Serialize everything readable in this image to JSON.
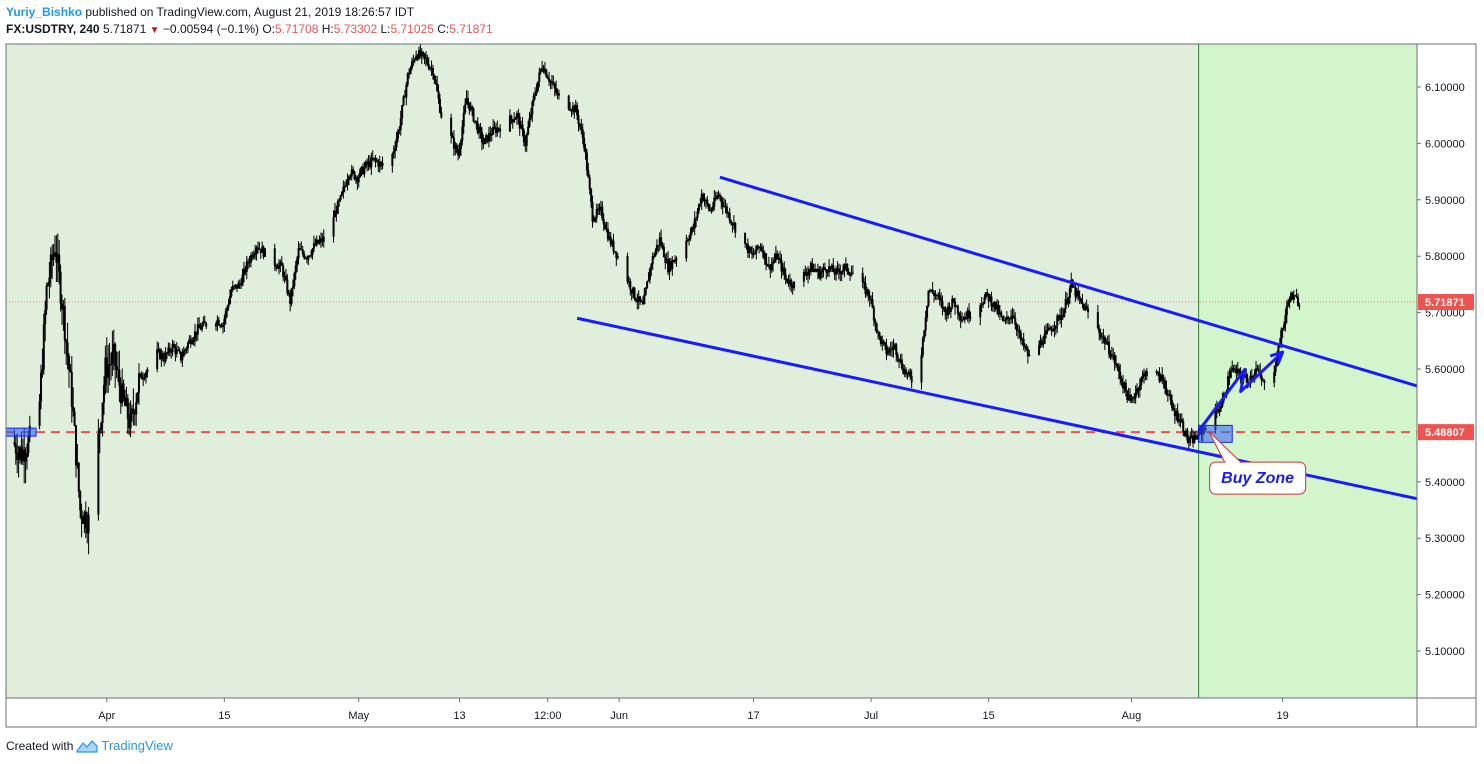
{
  "header": {
    "author": "Yuriy_Bishko",
    "published_text": "published on TradingView.com, August 21, 2019 18:26:57 IDT",
    "symbol": "FX:USDTRY, 240",
    "last": "5.71871",
    "change": "−0.00594 (−0.1%)",
    "o_label": "O:",
    "o_value": "5.71708",
    "h_label": "H:",
    "h_value": "5.73302",
    "l_label": "L:",
    "l_value": "5.71025",
    "c_label": "C:",
    "c_value": "5.71871"
  },
  "footer": {
    "created_with": "Created with",
    "brand": "TradingView"
  },
  "colors": {
    "bg_past": "#dfefdc",
    "bg_future": "#d3f5cc",
    "channel": "#1a1aff",
    "support": "#ef5350",
    "price_badge": "#ef5350",
    "candle": "#000000",
    "callout_border": "#d32f2f",
    "callout_text": "#1a1aff"
  },
  "chart_data": {
    "type": "candlestick",
    "symbol": "FX:USDTRY",
    "interval": "240",
    "x_tick_labels": [
      "Apr",
      "15",
      "May",
      "13",
      "12:00",
      "Jun",
      "17",
      "Jul",
      "15",
      "Aug",
      "19"
    ],
    "y_tick_labels": [
      "6.10000",
      "6.00000",
      "5.90000",
      "5.80000",
      "5.70000",
      "5.60000",
      "5.40000",
      "5.30000",
      "5.20000",
      "5.10000"
    ],
    "y_ticks": [
      6.1,
      6.0,
      5.9,
      5.8,
      5.7,
      5.6,
      5.4,
      5.3,
      5.2,
      5.1
    ],
    "ylim": [
      5.02,
      6.17
    ],
    "current_price": 5.71871,
    "current_price_label": "5.71871",
    "support_level": 5.48807,
    "support_label": "5.48807",
    "price_path": [
      [
        "2019-03-21",
        5.47
      ],
      [
        "2019-03-22",
        5.45
      ],
      [
        "2019-03-24",
        5.5
      ],
      [
        "2019-03-25",
        5.74
      ],
      [
        "2019-03-26",
        5.82
      ],
      [
        "2019-03-27",
        5.7
      ],
      [
        "2019-03-28",
        5.55
      ],
      [
        "2019-03-29",
        5.35
      ],
      [
        "2019-03-30",
        5.33
      ],
      [
        "2019-03-31",
        5.45
      ],
      [
        "2019-04-01",
        5.6
      ],
      [
        "2019-04-02",
        5.62
      ],
      [
        "2019-04-03",
        5.55
      ],
      [
        "2019-04-04",
        5.5
      ],
      [
        "2019-04-05",
        5.58
      ],
      [
        "2019-04-06",
        5.6
      ],
      [
        "2019-04-07",
        5.63
      ],
      [
        "2019-04-08",
        5.62
      ],
      [
        "2019-04-09",
        5.64
      ],
      [
        "2019-04-10",
        5.62
      ],
      [
        "2019-04-11",
        5.65
      ],
      [
        "2019-04-12",
        5.67
      ],
      [
        "2019-04-14",
        5.69
      ],
      [
        "2019-04-15",
        5.68
      ],
      [
        "2019-04-16",
        5.74
      ],
      [
        "2019-04-17",
        5.75
      ],
      [
        "2019-04-18",
        5.79
      ],
      [
        "2019-04-19",
        5.82
      ],
      [
        "2019-04-21",
        5.79
      ],
      [
        "2019-04-22",
        5.78
      ],
      [
        "2019-04-23",
        5.72
      ],
      [
        "2019-04-24",
        5.81
      ],
      [
        "2019-04-25",
        5.8
      ],
      [
        "2019-04-26",
        5.82
      ],
      [
        "2019-04-27",
        5.83
      ],
      [
        "2019-04-29",
        5.9
      ],
      [
        "2019-04-30",
        5.95
      ],
      [
        "2019-05-01",
        5.94
      ],
      [
        "2019-05-02",
        5.96
      ],
      [
        "2019-05-03",
        5.97
      ],
      [
        "2019-05-04",
        5.96
      ],
      [
        "2019-05-05",
        5.97
      ],
      [
        "2019-05-06",
        6.03
      ],
      [
        "2019-05-07",
        6.12
      ],
      [
        "2019-05-08",
        6.16
      ],
      [
        "2019-05-09",
        6.15
      ],
      [
        "2019-05-10",
        6.13
      ],
      [
        "2019-05-11",
        6.05
      ],
      [
        "2019-05-13",
        5.98
      ],
      [
        "2019-05-14",
        6.08
      ],
      [
        "2019-05-15",
        6.04
      ],
      [
        "2019-05-16",
        6.0
      ],
      [
        "2019-05-17",
        6.02
      ],
      [
        "2019-05-18",
        6.03
      ],
      [
        "2019-05-20",
        6.05
      ],
      [
        "2019-05-21",
        6.0
      ],
      [
        "2019-05-22",
        6.08
      ],
      [
        "2019-05-23",
        6.14
      ],
      [
        "2019-05-24",
        6.11
      ],
      [
        "2019-05-25",
        6.08
      ],
      [
        "2019-05-27",
        6.06
      ],
      [
        "2019-05-28",
        6.0
      ],
      [
        "2019-05-29",
        5.87
      ],
      [
        "2019-05-30",
        5.88
      ],
      [
        "2019-05-31",
        5.83
      ],
      [
        "2019-06-01",
        5.8
      ],
      [
        "2019-06-03",
        5.73
      ],
      [
        "2019-06-04",
        5.71
      ],
      [
        "2019-06-05",
        5.79
      ],
      [
        "2019-06-06",
        5.83
      ],
      [
        "2019-06-07",
        5.78
      ],
      [
        "2019-06-08",
        5.8
      ],
      [
        "2019-06-10",
        5.85
      ],
      [
        "2019-06-11",
        5.91
      ],
      [
        "2019-06-12",
        5.88
      ],
      [
        "2019-06-13",
        5.91
      ],
      [
        "2019-06-14",
        5.88
      ],
      [
        "2019-06-15",
        5.85
      ],
      [
        "2019-06-17",
        5.8
      ],
      [
        "2019-06-18",
        5.82
      ],
      [
        "2019-06-19",
        5.78
      ],
      [
        "2019-06-20",
        5.8
      ],
      [
        "2019-06-21",
        5.76
      ],
      [
        "2019-06-22",
        5.75
      ],
      [
        "2019-06-24",
        5.78
      ],
      [
        "2019-06-25",
        5.77
      ],
      [
        "2019-06-26",
        5.78
      ],
      [
        "2019-06-27",
        5.77
      ],
      [
        "2019-06-28",
        5.78
      ],
      [
        "2019-06-29",
        5.77
      ],
      [
        "2019-07-01",
        5.73
      ],
      [
        "2019-07-02",
        5.66
      ],
      [
        "2019-07-03",
        5.63
      ],
      [
        "2019-07-04",
        5.64
      ],
      [
        "2019-07-05",
        5.6
      ],
      [
        "2019-07-06",
        5.58
      ],
      [
        "2019-07-07",
        5.61
      ],
      [
        "2019-07-08",
        5.74
      ],
      [
        "2019-07-09",
        5.73
      ],
      [
        "2019-07-10",
        5.7
      ],
      [
        "2019-07-11",
        5.72
      ],
      [
        "2019-07-12",
        5.69
      ],
      [
        "2019-07-13",
        5.7
      ],
      [
        "2019-07-15",
        5.73
      ],
      [
        "2019-07-16",
        5.71
      ],
      [
        "2019-07-17",
        5.68
      ],
      [
        "2019-07-18",
        5.7
      ],
      [
        "2019-07-19",
        5.65
      ],
      [
        "2019-07-20",
        5.62
      ],
      [
        "2019-07-22",
        5.66
      ],
      [
        "2019-07-23",
        5.68
      ],
      [
        "2019-07-24",
        5.7
      ],
      [
        "2019-07-25",
        5.75
      ],
      [
        "2019-07-26",
        5.72
      ],
      [
        "2019-07-27",
        5.7
      ],
      [
        "2019-07-29",
        5.65
      ],
      [
        "2019-07-30",
        5.62
      ],
      [
        "2019-07-31",
        5.58
      ],
      [
        "2019-08-01",
        5.54
      ],
      [
        "2019-08-02",
        5.57
      ],
      [
        "2019-08-03",
        5.6
      ],
      [
        "2019-08-05",
        5.58
      ],
      [
        "2019-08-06",
        5.53
      ],
      [
        "2019-08-07",
        5.51
      ],
      [
        "2019-08-08",
        5.47
      ],
      [
        "2019-08-09",
        5.48
      ],
      [
        "2019-08-10",
        5.5
      ],
      [
        "2019-08-12",
        5.54
      ],
      [
        "2019-08-13",
        5.6
      ],
      [
        "2019-08-14",
        5.59
      ],
      [
        "2019-08-15",
        5.58
      ],
      [
        "2019-08-16",
        5.6
      ],
      [
        "2019-08-17",
        5.57
      ],
      [
        "2019-08-18",
        5.59
      ],
      [
        "2019-08-19",
        5.66
      ],
      [
        "2019-08-20",
        5.73
      ],
      [
        "2019-08-21",
        5.72
      ]
    ],
    "channel_upper": [
      [
        "2019-06-13",
        5.94
      ],
      [
        "2019-09-04",
        5.57
      ]
    ],
    "channel_lower": [
      [
        "2019-05-27",
        5.69
      ],
      [
        "2019-09-04",
        5.37
      ]
    ],
    "projection_arrow": [
      [
        "2019-08-09",
        5.49
      ],
      [
        "2019-08-19",
        5.63
      ]
    ],
    "forecast_zone_start": "2019-08-09",
    "buy_zone_box": {
      "x": [
        "2019-08-09",
        "2019-08-13"
      ],
      "y": [
        5.47,
        5.5
      ]
    },
    "annotation": "Buy Zone"
  }
}
